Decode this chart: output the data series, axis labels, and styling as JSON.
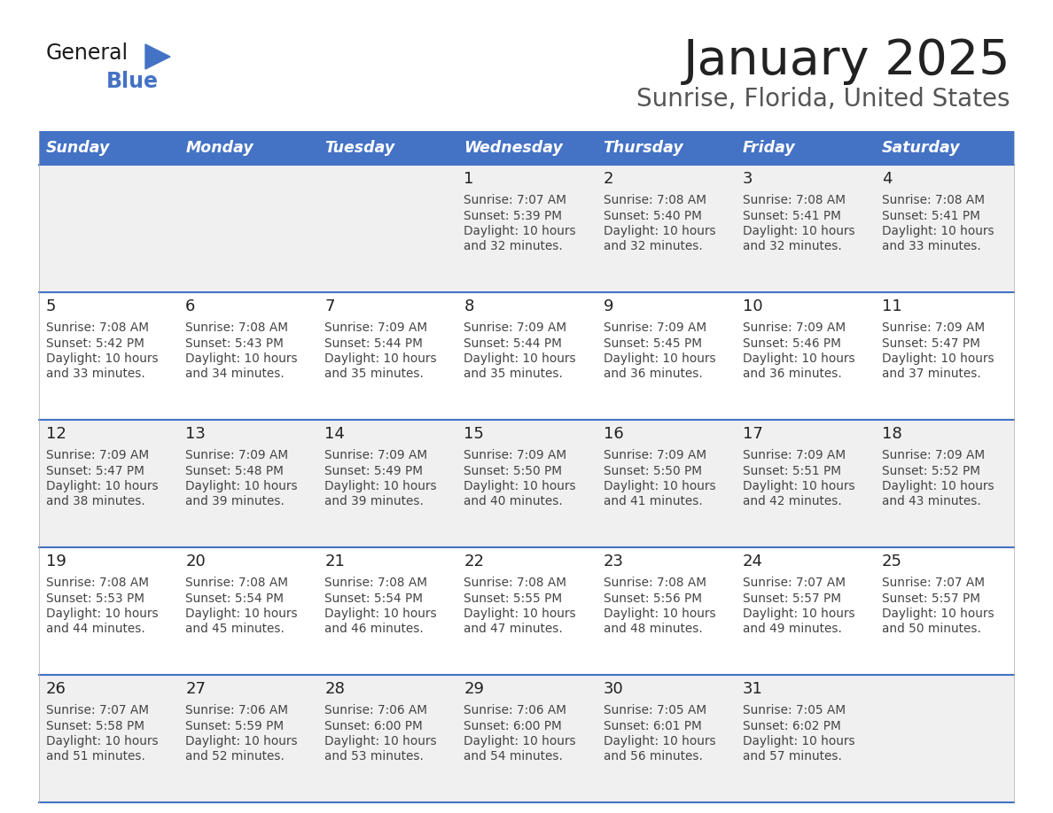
{
  "title": "January 2025",
  "subtitle": "Sunrise, Florida, United States",
  "days_of_week": [
    "Sunday",
    "Monday",
    "Tuesday",
    "Wednesday",
    "Thursday",
    "Friday",
    "Saturday"
  ],
  "header_bg": "#4472C4",
  "header_text_color": "#FFFFFF",
  "row_bg_even": "#F0F0F0",
  "row_bg_odd": "#FFFFFF",
  "cell_text_color": "#333333",
  "day_num_color": "#222222",
  "separator_color": "#4472C4",
  "calendar_data": [
    [
      {
        "day": null,
        "sunrise": null,
        "sunset": null,
        "daylight": null
      },
      {
        "day": null,
        "sunrise": null,
        "sunset": null,
        "daylight": null
      },
      {
        "day": null,
        "sunrise": null,
        "sunset": null,
        "daylight": null
      },
      {
        "day": 1,
        "sunrise": "7:07 AM",
        "sunset": "5:39 PM",
        "daylight": "10 hours and 32 minutes."
      },
      {
        "day": 2,
        "sunrise": "7:08 AM",
        "sunset": "5:40 PM",
        "daylight": "10 hours and 32 minutes."
      },
      {
        "day": 3,
        "sunrise": "7:08 AM",
        "sunset": "5:41 PM",
        "daylight": "10 hours and 32 minutes."
      },
      {
        "day": 4,
        "sunrise": "7:08 AM",
        "sunset": "5:41 PM",
        "daylight": "10 hours and 33 minutes."
      }
    ],
    [
      {
        "day": 5,
        "sunrise": "7:08 AM",
        "sunset": "5:42 PM",
        "daylight": "10 hours and 33 minutes."
      },
      {
        "day": 6,
        "sunrise": "7:08 AM",
        "sunset": "5:43 PM",
        "daylight": "10 hours and 34 minutes."
      },
      {
        "day": 7,
        "sunrise": "7:09 AM",
        "sunset": "5:44 PM",
        "daylight": "10 hours and 35 minutes."
      },
      {
        "day": 8,
        "sunrise": "7:09 AM",
        "sunset": "5:44 PM",
        "daylight": "10 hours and 35 minutes."
      },
      {
        "day": 9,
        "sunrise": "7:09 AM",
        "sunset": "5:45 PM",
        "daylight": "10 hours and 36 minutes."
      },
      {
        "day": 10,
        "sunrise": "7:09 AM",
        "sunset": "5:46 PM",
        "daylight": "10 hours and 36 minutes."
      },
      {
        "day": 11,
        "sunrise": "7:09 AM",
        "sunset": "5:47 PM",
        "daylight": "10 hours and 37 minutes."
      }
    ],
    [
      {
        "day": 12,
        "sunrise": "7:09 AM",
        "sunset": "5:47 PM",
        "daylight": "10 hours and 38 minutes."
      },
      {
        "day": 13,
        "sunrise": "7:09 AM",
        "sunset": "5:48 PM",
        "daylight": "10 hours and 39 minutes."
      },
      {
        "day": 14,
        "sunrise": "7:09 AM",
        "sunset": "5:49 PM",
        "daylight": "10 hours and 39 minutes."
      },
      {
        "day": 15,
        "sunrise": "7:09 AM",
        "sunset": "5:50 PM",
        "daylight": "10 hours and 40 minutes."
      },
      {
        "day": 16,
        "sunrise": "7:09 AM",
        "sunset": "5:50 PM",
        "daylight": "10 hours and 41 minutes."
      },
      {
        "day": 17,
        "sunrise": "7:09 AM",
        "sunset": "5:51 PM",
        "daylight": "10 hours and 42 minutes."
      },
      {
        "day": 18,
        "sunrise": "7:09 AM",
        "sunset": "5:52 PM",
        "daylight": "10 hours and 43 minutes."
      }
    ],
    [
      {
        "day": 19,
        "sunrise": "7:08 AM",
        "sunset": "5:53 PM",
        "daylight": "10 hours and 44 minutes."
      },
      {
        "day": 20,
        "sunrise": "7:08 AM",
        "sunset": "5:54 PM",
        "daylight": "10 hours and 45 minutes."
      },
      {
        "day": 21,
        "sunrise": "7:08 AM",
        "sunset": "5:54 PM",
        "daylight": "10 hours and 46 minutes."
      },
      {
        "day": 22,
        "sunrise": "7:08 AM",
        "sunset": "5:55 PM",
        "daylight": "10 hours and 47 minutes."
      },
      {
        "day": 23,
        "sunrise": "7:08 AM",
        "sunset": "5:56 PM",
        "daylight": "10 hours and 48 minutes."
      },
      {
        "day": 24,
        "sunrise": "7:07 AM",
        "sunset": "5:57 PM",
        "daylight": "10 hours and 49 minutes."
      },
      {
        "day": 25,
        "sunrise": "7:07 AM",
        "sunset": "5:57 PM",
        "daylight": "10 hours and 50 minutes."
      }
    ],
    [
      {
        "day": 26,
        "sunrise": "7:07 AM",
        "sunset": "5:58 PM",
        "daylight": "10 hours and 51 minutes."
      },
      {
        "day": 27,
        "sunrise": "7:06 AM",
        "sunset": "5:59 PM",
        "daylight": "10 hours and 52 minutes."
      },
      {
        "day": 28,
        "sunrise": "7:06 AM",
        "sunset": "6:00 PM",
        "daylight": "10 hours and 53 minutes."
      },
      {
        "day": 29,
        "sunrise": "7:06 AM",
        "sunset": "6:00 PM",
        "daylight": "10 hours and 54 minutes."
      },
      {
        "day": 30,
        "sunrise": "7:05 AM",
        "sunset": "6:01 PM",
        "daylight": "10 hours and 56 minutes."
      },
      {
        "day": 31,
        "sunrise": "7:05 AM",
        "sunset": "6:02 PM",
        "daylight": "10 hours and 57 minutes."
      },
      {
        "day": null,
        "sunrise": null,
        "sunset": null,
        "daylight": null
      }
    ]
  ]
}
